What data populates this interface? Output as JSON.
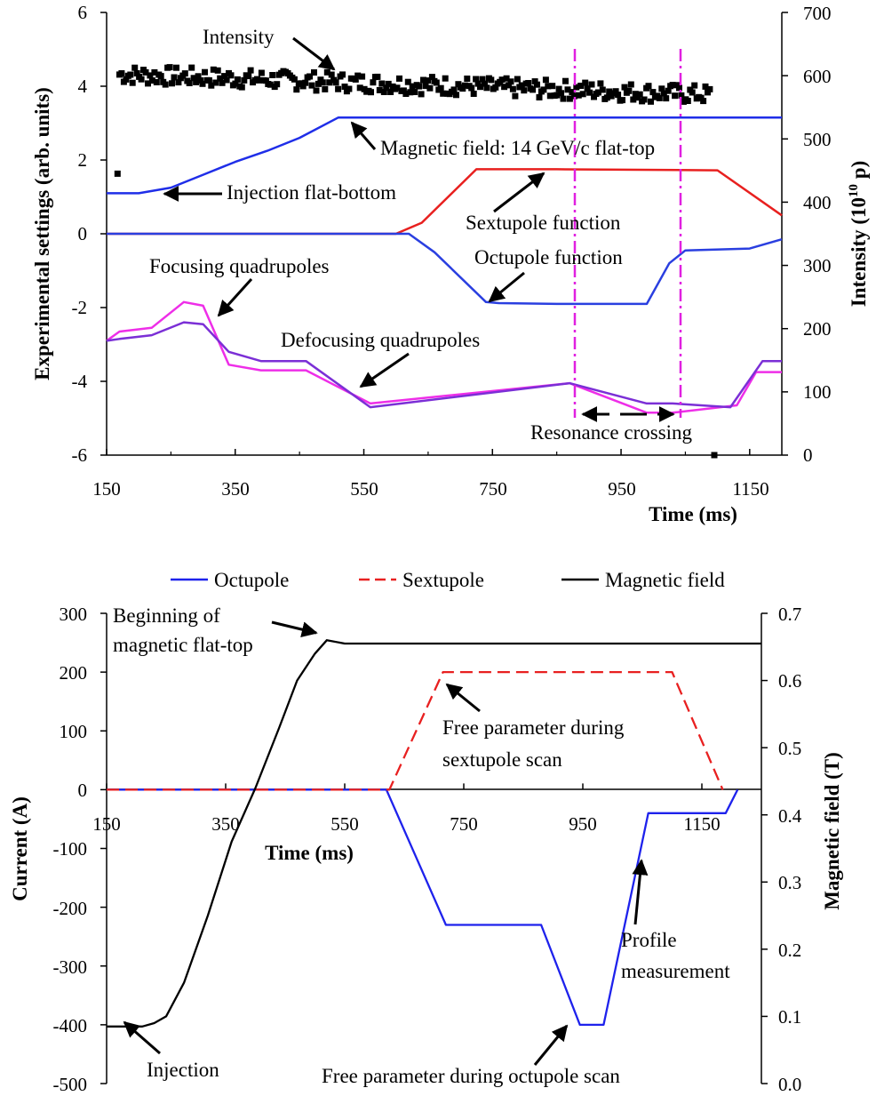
{
  "chart_data": [
    {
      "type": "line",
      "xlabel": "Time (ms)",
      "ylabel": "Experimental settings (arb. units)",
      "y2label": "Intensity (10{sup}10{/sup} p)",
      "xlim": [
        150,
        1200
      ],
      "ylim": [
        -6,
        6
      ],
      "y2lim": [
        0,
        700
      ],
      "xticks": [
        "150",
        "350",
        "550",
        "750",
        "950",
        "1150"
      ],
      "yticks": [
        "-6",
        "-4",
        "-2",
        "0",
        "2",
        "4",
        "6"
      ],
      "y2ticks": [
        "0",
        "100",
        "200",
        "300",
        "400",
        "500",
        "600",
        "700"
      ],
      "colors": {
        "field": "#1f2ee8",
        "sextupole": "#e8201f",
        "octupole": "#2a3fe0",
        "focusing": "#ee2ee8",
        "defocusing": "#7b2fd6",
        "intensity": "#000000",
        "marker": "#e020e0"
      },
      "series": [
        {
          "key": "field",
          "x": [
            150,
            200,
            250,
            300,
            350,
            400,
            450,
            510,
            1200
          ],
          "y": [
            1.1,
            1.1,
            1.25,
            1.6,
            1.95,
            2.25,
            2.6,
            3.15,
            3.15
          ]
        },
        {
          "key": "sextupole",
          "x": [
            150,
            600,
            640,
            725,
            850,
            1100,
            1200
          ],
          "y": [
            0,
            0,
            0.3,
            1.75,
            1.75,
            1.72,
            0.5
          ]
        },
        {
          "key": "octupole",
          "x": [
            150,
            620,
            660,
            740,
            760,
            850,
            990,
            1025,
            1050,
            1150,
            1200
          ],
          "y": [
            0,
            0,
            -0.5,
            -1.85,
            -1.88,
            -1.9,
            -1.9,
            -0.8,
            -0.45,
            -0.4,
            -0.15
          ]
        },
        {
          "key": "focusing",
          "x": [
            150,
            170,
            220,
            270,
            300,
            340,
            390,
            460,
            560,
            870,
            990,
            1030,
            1130,
            1160,
            1200
          ],
          "y": [
            -2.9,
            -2.65,
            -2.55,
            -1.85,
            -1.95,
            -3.55,
            -3.7,
            -3.7,
            -4.6,
            -4.05,
            -4.85,
            -4.85,
            -4.65,
            -3.75,
            -3.75
          ]
        },
        {
          "key": "defocusing",
          "x": [
            150,
            170,
            220,
            270,
            300,
            340,
            390,
            460,
            560,
            870,
            990,
            1030,
            1120,
            1170,
            1200
          ],
          "y": [
            -2.9,
            -2.85,
            -2.75,
            -2.4,
            -2.45,
            -3.2,
            -3.45,
            -3.45,
            -4.7,
            -4.05,
            -4.6,
            -4.6,
            -4.7,
            -3.45,
            -3.45
          ]
        },
        {
          "key": "intensity",
          "type": "scatter",
          "x_range": [
            170,
            1090
          ],
          "y_range": [
            555,
            615
          ],
          "outliers": [
            {
              "x": 167,
              "y": 445
            },
            {
              "x": 1095,
              "y": 0
            }
          ]
        }
      ],
      "annotations": [
        "Intensity",
        "Magnetic field: 14 GeV/c flat-top",
        "Injection flat-bottom",
        "Sextupole function",
        "Octupole function",
        "Focusing quadrupoles",
        "Defocusing quadrupoles",
        "Resonance crossing"
      ],
      "vlines": [
        865,
        1030
      ]
    },
    {
      "type": "line",
      "xlabel": "Time (ms)",
      "ylabel": "Current (A)",
      "y2label": "Magnetic field (T)",
      "xlim": [
        150,
        1250
      ],
      "ylim": [
        -500,
        300
      ],
      "y2lim": [
        0.0,
        0.7
      ],
      "xticks": [
        "150",
        "350",
        "550",
        "750",
        "950",
        "1150"
      ],
      "yticks": [
        "-500",
        "-400",
        "-300",
        "-200",
        "-100",
        "0",
        "100",
        "200",
        "300"
      ],
      "y2ticks": [
        "0.0",
        "0.1",
        "0.2",
        "0.3",
        "0.4",
        "0.5",
        "0.6",
        "0.7"
      ],
      "legend": [
        "Octupole",
        "Sextupole",
        "Magnetic field"
      ],
      "colors": {
        "octupole": "#1e22ec",
        "sextupole": "#e82020",
        "field": "#000000"
      },
      "series": [
        {
          "name": "Octupole",
          "x": [
            150,
            620,
            720,
            880,
            945,
            985,
            1060,
            1190,
            1210
          ],
          "y": [
            0,
            0,
            -230,
            -230,
            -400,
            -400,
            -40,
            -40,
            0
          ]
        },
        {
          "name": "Sextupole",
          "x": [
            150,
            625,
            715,
            1100,
            1185
          ],
          "y": [
            0,
            0,
            200,
            200,
            0
          ]
        },
        {
          "name": "Magnetic field",
          "y_axis": "right",
          "x": [
            150,
            210,
            230,
            250,
            280,
            320,
            360,
            400,
            440,
            470,
            500,
            520,
            550,
            1250
          ],
          "y": [
            0.085,
            0.085,
            0.09,
            0.1,
            0.15,
            0.25,
            0.36,
            0.44,
            0.53,
            0.6,
            0.64,
            0.66,
            0.655,
            0.655
          ]
        }
      ],
      "annotations": [
        "Beginning of",
        "magnetic flat-top",
        "Free parameter during",
        "sextupole scan",
        "Profile",
        "measurement",
        "Injection",
        "Free parameter during octupole scan"
      ]
    }
  ]
}
